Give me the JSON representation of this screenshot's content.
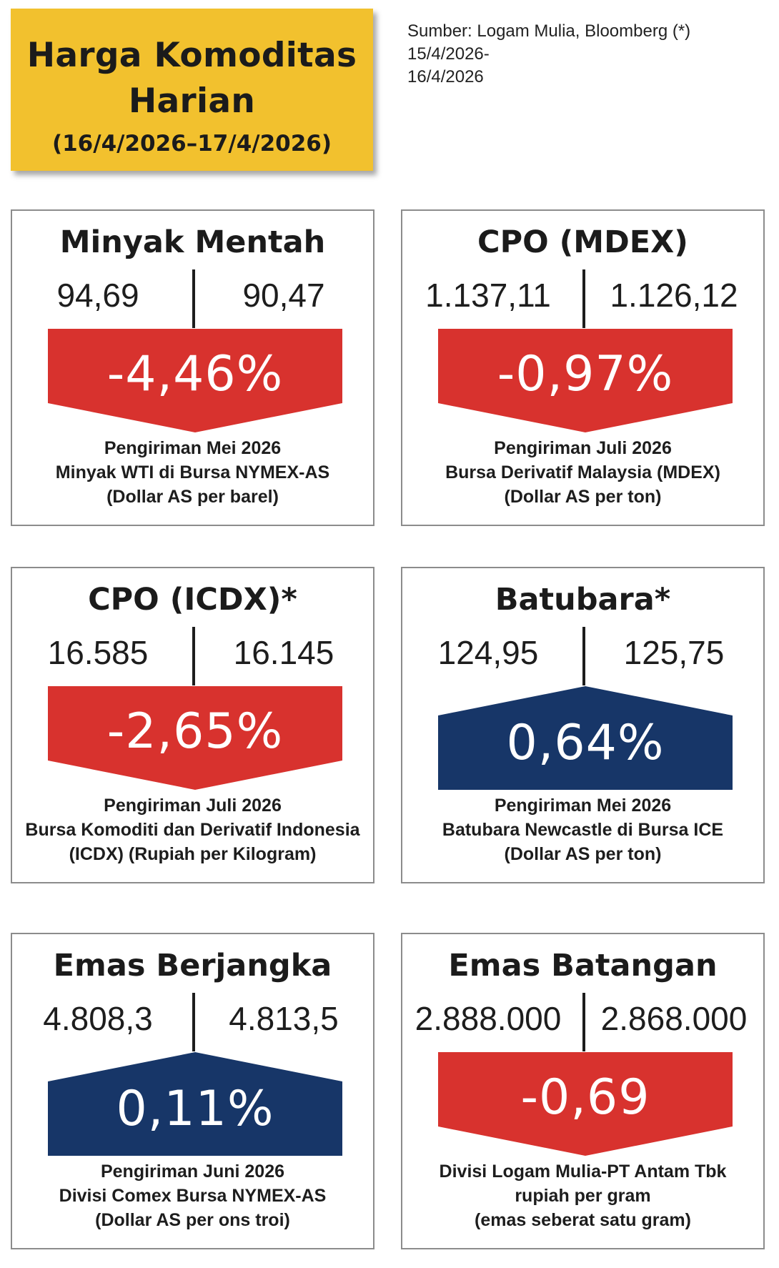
{
  "header": {
    "title_line1": "Harga Komoditas",
    "title_line2": "Harian",
    "date_range": "(16/4/2026–17/4/2026)",
    "source_line1": "Sumber: Logam Mulia, Bloomberg (*) 15/4/2026-",
    "source_line2": "16/4/2026"
  },
  "colors": {
    "header_bg": "#f2c12e",
    "down_red": "#d8322e",
    "up_navy": "#173668"
  },
  "cards": [
    {
      "title": "Minyak Mentah",
      "prev": "94,69",
      "curr": "90,47",
      "change": "-4,46%",
      "direction": "down",
      "desc": [
        "Pengiriman Mei 2026",
        "Minyak WTI di Bursa NYMEX-AS",
        "(Dollar AS per barel)"
      ]
    },
    {
      "title": "CPO (MDEX)",
      "prev": "1.137,11",
      "curr": "1.126,12",
      "change": "-0,97%",
      "direction": "down",
      "desc": [
        "Pengiriman Juli 2026",
        "Bursa Derivatif Malaysia (MDEX)",
        "(Dollar AS per ton)"
      ]
    },
    {
      "title": "CPO (ICDX)*",
      "prev": "16.585",
      "curr": "16.145",
      "change": "-2,65%",
      "direction": "down",
      "desc": [
        "Pengiriman Juli 2026",
        "Bursa Komoditi dan Derivatif Indonesia",
        "(ICDX) (Rupiah per Kilogram)"
      ]
    },
    {
      "title": "Batubara*",
      "prev": "124,95",
      "curr": "125,75",
      "change": "0,64%",
      "direction": "up",
      "desc": [
        "Pengiriman Mei 2026",
        "Batubara Newcastle di Bursa ICE",
        "(Dollar AS per ton)"
      ]
    },
    {
      "title": "Emas Berjangka",
      "prev": "4.808,3",
      "curr": "4.813,5",
      "change": "0,11%",
      "direction": "up",
      "desc": [
        "Pengiriman Juni 2026",
        "Divisi Comex Bursa NYMEX-AS",
        "(Dollar AS per ons troi)"
      ]
    },
    {
      "title": "Emas Batangan",
      "prev": "2.888.000",
      "curr": "2.868.000",
      "change": "-0,69",
      "direction": "down",
      "desc": [
        "Divisi Logam Mulia-PT Antam Tbk",
        "rupiah per gram",
        "(emas seberat satu gram)"
      ]
    }
  ]
}
